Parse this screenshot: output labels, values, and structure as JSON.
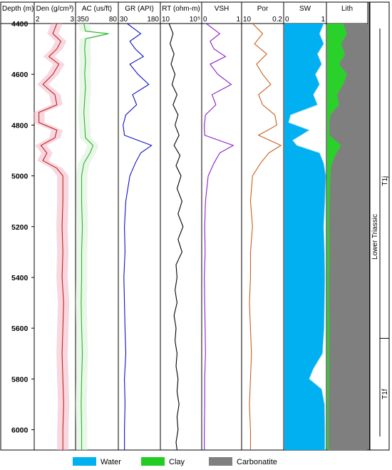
{
  "chart_data": {
    "type": "line",
    "depth_axis": {
      "label": "Depth (m)",
      "range": [
        4400,
        6080
      ],
      "ticks": [
        "4400",
        "4600",
        "4800",
        "5000",
        "5200",
        "5400",
        "5600",
        "5800",
        "6000"
      ]
    },
    "tracks": [
      {
        "id": "den",
        "label": "Den (g/cm³)",
        "scale_min": "2",
        "scale_max": "3",
        "color": "#c81d1d",
        "shade": "#f2b8c6",
        "series": [
          [
            4400,
            2.55
          ],
          [
            4440,
            2.45
          ],
          [
            4470,
            2.65
          ],
          [
            4500,
            2.55
          ],
          [
            4530,
            2.35
          ],
          [
            4560,
            2.6
          ],
          [
            4600,
            2.45
          ],
          [
            4640,
            2.2
          ],
          [
            4680,
            2.5
          ],
          [
            4720,
            2.55
          ],
          [
            4750,
            2.1
          ],
          [
            4790,
            2.1
          ],
          [
            4820,
            2.55
          ],
          [
            4850,
            2.5
          ],
          [
            4880,
            2.15
          ],
          [
            4910,
            2.3
          ],
          [
            4940,
            2.2
          ],
          [
            4970,
            2.55
          ],
          [
            5000,
            2.7
          ],
          [
            5100,
            2.7
          ],
          [
            5200,
            2.68
          ],
          [
            5300,
            2.7
          ],
          [
            5400,
            2.68
          ],
          [
            5500,
            2.72
          ],
          [
            5600,
            2.7
          ],
          [
            5700,
            2.68
          ],
          [
            5800,
            2.7
          ],
          [
            5900,
            2.72
          ],
          [
            6000,
            2.7
          ],
          [
            6080,
            2.7
          ]
        ]
      },
      {
        "id": "ac",
        "label": "AC (us/ft)",
        "scale_min": "350",
        "scale_max": "80",
        "color": "#2bb52b",
        "shade": "#d6f0d6",
        "series": [
          [
            4400,
            300
          ],
          [
            4430,
            290
          ],
          [
            4440,
            140
          ],
          [
            4460,
            290
          ],
          [
            4500,
            295
          ],
          [
            4550,
            290
          ],
          [
            4600,
            295
          ],
          [
            4650,
            290
          ],
          [
            4700,
            295
          ],
          [
            4750,
            300
          ],
          [
            4800,
            295
          ],
          [
            4850,
            290
          ],
          [
            4880,
            240
          ],
          [
            4910,
            260
          ],
          [
            4950,
            300
          ],
          [
            5000,
            315
          ],
          [
            5100,
            315
          ],
          [
            5200,
            310
          ],
          [
            5300,
            315
          ],
          [
            5400,
            315
          ],
          [
            5500,
            318
          ],
          [
            5600,
            315
          ],
          [
            5700,
            310
          ],
          [
            5800,
            315
          ],
          [
            5900,
            318
          ],
          [
            6000,
            315
          ],
          [
            6080,
            315
          ]
        ]
      },
      {
        "id": "gr",
        "label": "GR (API)",
        "scale_min": "30",
        "scale_max": "180",
        "color": "#1010c8",
        "shade": "#ffffff",
        "series": [
          [
            4400,
            60
          ],
          [
            4440,
            110
          ],
          [
            4470,
            70
          ],
          [
            4500,
            90
          ],
          [
            4530,
            120
          ],
          [
            4560,
            70
          ],
          [
            4600,
            100
          ],
          [
            4640,
            140
          ],
          [
            4680,
            80
          ],
          [
            4720,
            95
          ],
          [
            4760,
            55
          ],
          [
            4800,
            45
          ],
          [
            4840,
            50
          ],
          [
            4880,
            150
          ],
          [
            4910,
            110
          ],
          [
            4950,
            90
          ],
          [
            5000,
            70
          ],
          [
            5100,
            55
          ],
          [
            5200,
            50
          ],
          [
            5300,
            52
          ],
          [
            5400,
            48
          ],
          [
            5500,
            50
          ],
          [
            5600,
            52
          ],
          [
            5700,
            55
          ],
          [
            5800,
            50
          ],
          [
            5900,
            52
          ],
          [
            6000,
            50
          ],
          [
            6080,
            50
          ]
        ]
      },
      {
        "id": "rt",
        "label": "RT (ohm-m)",
        "scale_min": "10",
        "scale_max": "10⁵",
        "color": "#000000",
        "shade": "#ffffff",
        "series": [
          [
            4400,
            1.8
          ],
          [
            4440,
            2.2
          ],
          [
            4480,
            1.9
          ],
          [
            4520,
            2.3
          ],
          [
            4560,
            2.0
          ],
          [
            4600,
            2.4
          ],
          [
            4640,
            2.1
          ],
          [
            4680,
            2.6
          ],
          [
            4720,
            2.2
          ],
          [
            4760,
            2.7
          ],
          [
            4800,
            2.4
          ],
          [
            4840,
            2.8
          ],
          [
            4880,
            2.3
          ],
          [
            4920,
            2.9
          ],
          [
            4960,
            2.5
          ],
          [
            5000,
            3.0
          ],
          [
            5050,
            2.6
          ],
          [
            5100,
            3.1
          ],
          [
            5150,
            2.7
          ],
          [
            5200,
            3.2
          ],
          [
            5250,
            2.7
          ],
          [
            5300,
            3.1
          ],
          [
            5350,
            2.5
          ],
          [
            5400,
            2.6
          ],
          [
            5450,
            2.4
          ],
          [
            5500,
            2.6
          ],
          [
            5550,
            2.3
          ],
          [
            5600,
            2.5
          ],
          [
            5650,
            2.4
          ],
          [
            5700,
            2.6
          ],
          [
            5750,
            2.5
          ],
          [
            5800,
            2.7
          ],
          [
            5850,
            2.6
          ],
          [
            5900,
            2.8
          ],
          [
            5950,
            2.6
          ],
          [
            6000,
            2.7
          ],
          [
            6050,
            2.5
          ],
          [
            6080,
            2.6
          ]
        ]
      },
      {
        "id": "vsh",
        "label": "VSH",
        "scale_min": "0",
        "scale_max": "1",
        "color": "#8a1fc9",
        "shade": "#ffffff",
        "series": [
          [
            4400,
            0.1
          ],
          [
            4440,
            0.45
          ],
          [
            4470,
            0.2
          ],
          [
            4500,
            0.3
          ],
          [
            4530,
            0.6
          ],
          [
            4560,
            0.2
          ],
          [
            4600,
            0.4
          ],
          [
            4640,
            0.75
          ],
          [
            4680,
            0.25
          ],
          [
            4720,
            0.35
          ],
          [
            4760,
            0.08
          ],
          [
            4800,
            0.05
          ],
          [
            4840,
            0.06
          ],
          [
            4880,
            0.8
          ],
          [
            4910,
            0.45
          ],
          [
            4950,
            0.3
          ],
          [
            5000,
            0.15
          ],
          [
            5100,
            0.08
          ],
          [
            5200,
            0.06
          ],
          [
            5300,
            0.07
          ],
          [
            5400,
            0.05
          ],
          [
            5500,
            0.06
          ],
          [
            5600,
            0.07
          ],
          [
            5700,
            0.08
          ],
          [
            5800,
            0.06
          ],
          [
            5900,
            0.06
          ],
          [
            6000,
            0.05
          ],
          [
            6080,
            0.05
          ]
        ]
      },
      {
        "id": "por",
        "label": "Por",
        "scale_min": "10",
        "scale_max": "0.2",
        "color": "#c8601a",
        "shade": "#ffffff",
        "series": [
          [
            4400,
            0.05
          ],
          [
            4440,
            0.1
          ],
          [
            4480,
            0.06
          ],
          [
            4520,
            0.12
          ],
          [
            4560,
            0.07
          ],
          [
            4600,
            0.1
          ],
          [
            4640,
            0.14
          ],
          [
            4680,
            0.08
          ],
          [
            4720,
            0.1
          ],
          [
            4760,
            0.16
          ],
          [
            4800,
            0.17
          ],
          [
            4840,
            0.08
          ],
          [
            4880,
            0.19
          ],
          [
            4910,
            0.13
          ],
          [
            4950,
            0.09
          ],
          [
            5000,
            0.05
          ],
          [
            5100,
            0.04
          ],
          [
            5200,
            0.05
          ],
          [
            5300,
            0.04
          ],
          [
            5400,
            0.04
          ],
          [
            5500,
            0.035
          ],
          [
            5600,
            0.04
          ],
          [
            5700,
            0.045
          ],
          [
            5800,
            0.04
          ],
          [
            5900,
            0.035
          ],
          [
            6000,
            0.04
          ],
          [
            6080,
            0.04
          ]
        ]
      },
      {
        "id": "sw",
        "label": "SW",
        "scale_min": "0",
        "scale_max": "1",
        "color": "#1ab0f0",
        "shade": "#00b0f0",
        "series": [
          [
            4400,
            0.95
          ],
          [
            4440,
            0.85
          ],
          [
            4480,
            0.95
          ],
          [
            4520,
            0.8
          ],
          [
            4560,
            0.9
          ],
          [
            4600,
            0.75
          ],
          [
            4640,
            0.85
          ],
          [
            4680,
            0.7
          ],
          [
            4720,
            0.8
          ],
          [
            4760,
            0.15
          ],
          [
            4790,
            0.1
          ],
          [
            4820,
            0.6
          ],
          [
            4860,
            0.2
          ],
          [
            4880,
            0.3
          ],
          [
            4910,
            0.85
          ],
          [
            4950,
            0.95
          ],
          [
            5000,
            1.0
          ],
          [
            5100,
            0.98
          ],
          [
            5200,
            0.95
          ],
          [
            5300,
            0.97
          ],
          [
            5400,
            0.98
          ],
          [
            5500,
            0.97
          ],
          [
            5600,
            0.96
          ],
          [
            5700,
            0.92
          ],
          [
            5760,
            0.7
          ],
          [
            5800,
            0.6
          ],
          [
            5840,
            0.9
          ],
          [
            5900,
            0.97
          ],
          [
            6000,
            0.98
          ],
          [
            6080,
            0.98
          ]
        ]
      },
      {
        "id": "lith",
        "label": "Lith",
        "scale_min": "",
        "scale_max": "",
        "color": "#2bd12b",
        "shade": "#7f7f7f",
        "series": [
          [
            4400,
            0.4
          ],
          [
            4440,
            0.5
          ],
          [
            4480,
            0.35
          ],
          [
            4520,
            0.45
          ],
          [
            4560,
            0.3
          ],
          [
            4600,
            0.5
          ],
          [
            4640,
            0.4
          ],
          [
            4680,
            0.25
          ],
          [
            4720,
            0.3
          ],
          [
            4760,
            0.08
          ],
          [
            4800,
            0.05
          ],
          [
            4840,
            0.06
          ],
          [
            4880,
            0.35
          ],
          [
            4920,
            0.2
          ],
          [
            4960,
            0.1
          ],
          [
            5000,
            0.08
          ],
          [
            5100,
            0.06
          ],
          [
            5200,
            0.05
          ],
          [
            5300,
            0.06
          ],
          [
            5400,
            0.05
          ],
          [
            5500,
            0.05
          ],
          [
            5600,
            0.06
          ],
          [
            5700,
            0.05
          ],
          [
            5800,
            0.05
          ],
          [
            5900,
            0.04
          ],
          [
            6000,
            0.04
          ],
          [
            6080,
            0.04
          ]
        ]
      }
    ],
    "stratigraphy": {
      "group": "Lower Triassic",
      "units": [
        {
          "label": "T1j",
          "top": 4400,
          "base": 5640
        },
        {
          "label": "T1f",
          "top": 5640,
          "base": 6080
        }
      ]
    },
    "legend": [
      {
        "label": "Water",
        "color": "#00b0f0"
      },
      {
        "label": "Clay",
        "color": "#22cc22"
      },
      {
        "label": "Carbonatite",
        "color": "#7f7f7f"
      }
    ]
  }
}
